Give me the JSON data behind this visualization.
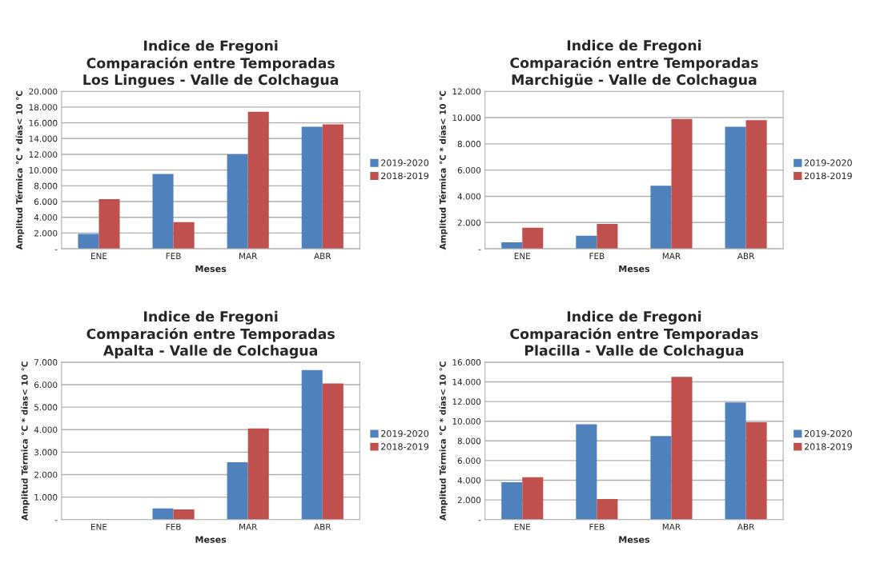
{
  "chart_data": [
    {
      "type": "bar",
      "title": "Indice de Fregoni\nComparación entre Temporadas\nLos Lingues - Valle de Colchagua",
      "xlabel": "Meses",
      "ylabel": "Amplitud Térmica °C * días< 10 °C",
      "categories": [
        "ENE",
        "FEB",
        "MAR",
        "ABR"
      ],
      "series": [
        {
          "name": "2019-2020",
          "color": "#4f81bd",
          "values": [
            1900,
            9500,
            12000,
            15500
          ]
        },
        {
          "name": "2018-2019",
          "color": "#c0504d",
          "values": [
            6300,
            3400,
            17400,
            15800
          ]
        }
      ],
      "ylim": [
        0,
        20000
      ],
      "yticks": [
        {
          "value": 0,
          "label": "-"
        },
        {
          "value": 2000,
          "label": "2.000"
        },
        {
          "value": 4000,
          "label": "4.000"
        },
        {
          "value": 6000,
          "label": "6.000"
        },
        {
          "value": 8000,
          "label": "8.000"
        },
        {
          "value": 10000,
          "label": "10.000"
        },
        {
          "value": 12000,
          "label": "12.000"
        },
        {
          "value": 14000,
          "label": "14.000"
        },
        {
          "value": 16000,
          "label": "16.000"
        },
        {
          "value": 18000,
          "label": "18.000"
        },
        {
          "value": 20000,
          "label": "20.000"
        }
      ],
      "grid": "y",
      "legend": "right"
    },
    {
      "type": "bar",
      "title": "Indice de Fregoni\nComparación entre Temporadas\nMarchigüe - Valle de Colchagua",
      "xlabel": "Meses",
      "ylabel": "Amplitud Térmica °C * días< 10 °C",
      "categories": [
        "ENE",
        "FEB",
        "MAR",
        "ABR"
      ],
      "series": [
        {
          "name": "2019-2020",
          "color": "#4f81bd",
          "values": [
            500,
            1000,
            4800,
            9300
          ]
        },
        {
          "name": "2018-2019",
          "color": "#c0504d",
          "values": [
            1600,
            1900,
            9900,
            9800
          ]
        }
      ],
      "ylim": [
        0,
        12000
      ],
      "yticks": [
        {
          "value": 0,
          "label": "-"
        },
        {
          "value": 2000,
          "label": "2.000"
        },
        {
          "value": 4000,
          "label": "4.000"
        },
        {
          "value": 6000,
          "label": "6.000"
        },
        {
          "value": 8000,
          "label": "8.000"
        },
        {
          "value": 10000,
          "label": "10.000"
        },
        {
          "value": 12000,
          "label": "12.000"
        }
      ],
      "grid": "y",
      "legend": "right"
    },
    {
      "type": "bar",
      "title": "Indice de Fregoni\nComparación entre Temporadas\nApalta - Valle de Colchagua",
      "xlabel": "Meses",
      "ylabel": "Amplitud Térmica °C * días< 10 °C",
      "categories": [
        "ENE",
        "FEB",
        "MAR",
        "ABR"
      ],
      "series": [
        {
          "name": "2019-2020",
          "color": "#4f81bd",
          "values": [
            0,
            500,
            2550,
            6650
          ]
        },
        {
          "name": "2018-2019",
          "color": "#c0504d",
          "values": [
            0,
            450,
            4050,
            6050
          ]
        }
      ],
      "ylim": [
        0,
        7000
      ],
      "yticks": [
        {
          "value": 0,
          "label": "-"
        },
        {
          "value": 1000,
          "label": "1.000"
        },
        {
          "value": 2000,
          "label": "2.000"
        },
        {
          "value": 3000,
          "label": "3.000"
        },
        {
          "value": 4000,
          "label": "4.000"
        },
        {
          "value": 5000,
          "label": "5.000"
        },
        {
          "value": 6000,
          "label": "6.000"
        },
        {
          "value": 7000,
          "label": "7.000"
        }
      ],
      "grid": "y",
      "legend": "right"
    },
    {
      "type": "bar",
      "title": "Indice de Fregoni\nComparación entre Temporadas\nPlacilla - Valle de Colchagua",
      "xlabel": "Meses",
      "ylabel": "Amplitud Térmica °C * días< 10 °C",
      "categories": [
        "ENE",
        "FEB",
        "MAR",
        "ABR"
      ],
      "series": [
        {
          "name": "2019-2020",
          "color": "#4f81bd",
          "values": [
            3800,
            9700,
            8500,
            11900
          ]
        },
        {
          "name": "2018-2019",
          "color": "#c0504d",
          "values": [
            4300,
            2100,
            14500,
            9900
          ]
        }
      ],
      "ylim": [
        0,
        16000
      ],
      "yticks": [
        {
          "value": 0,
          "label": "-"
        },
        {
          "value": 2000,
          "label": "2.000"
        },
        {
          "value": 4000,
          "label": "4.000"
        },
        {
          "value": 6000,
          "label": "6.000"
        },
        {
          "value": 8000,
          "label": "8.000"
        },
        {
          "value": 10000,
          "label": "10.000"
        },
        {
          "value": 12000,
          "label": "12.000"
        },
        {
          "value": 14000,
          "label": "14.000"
        },
        {
          "value": 16000,
          "label": "16.000"
        }
      ],
      "grid": "y",
      "legend": "right"
    }
  ]
}
